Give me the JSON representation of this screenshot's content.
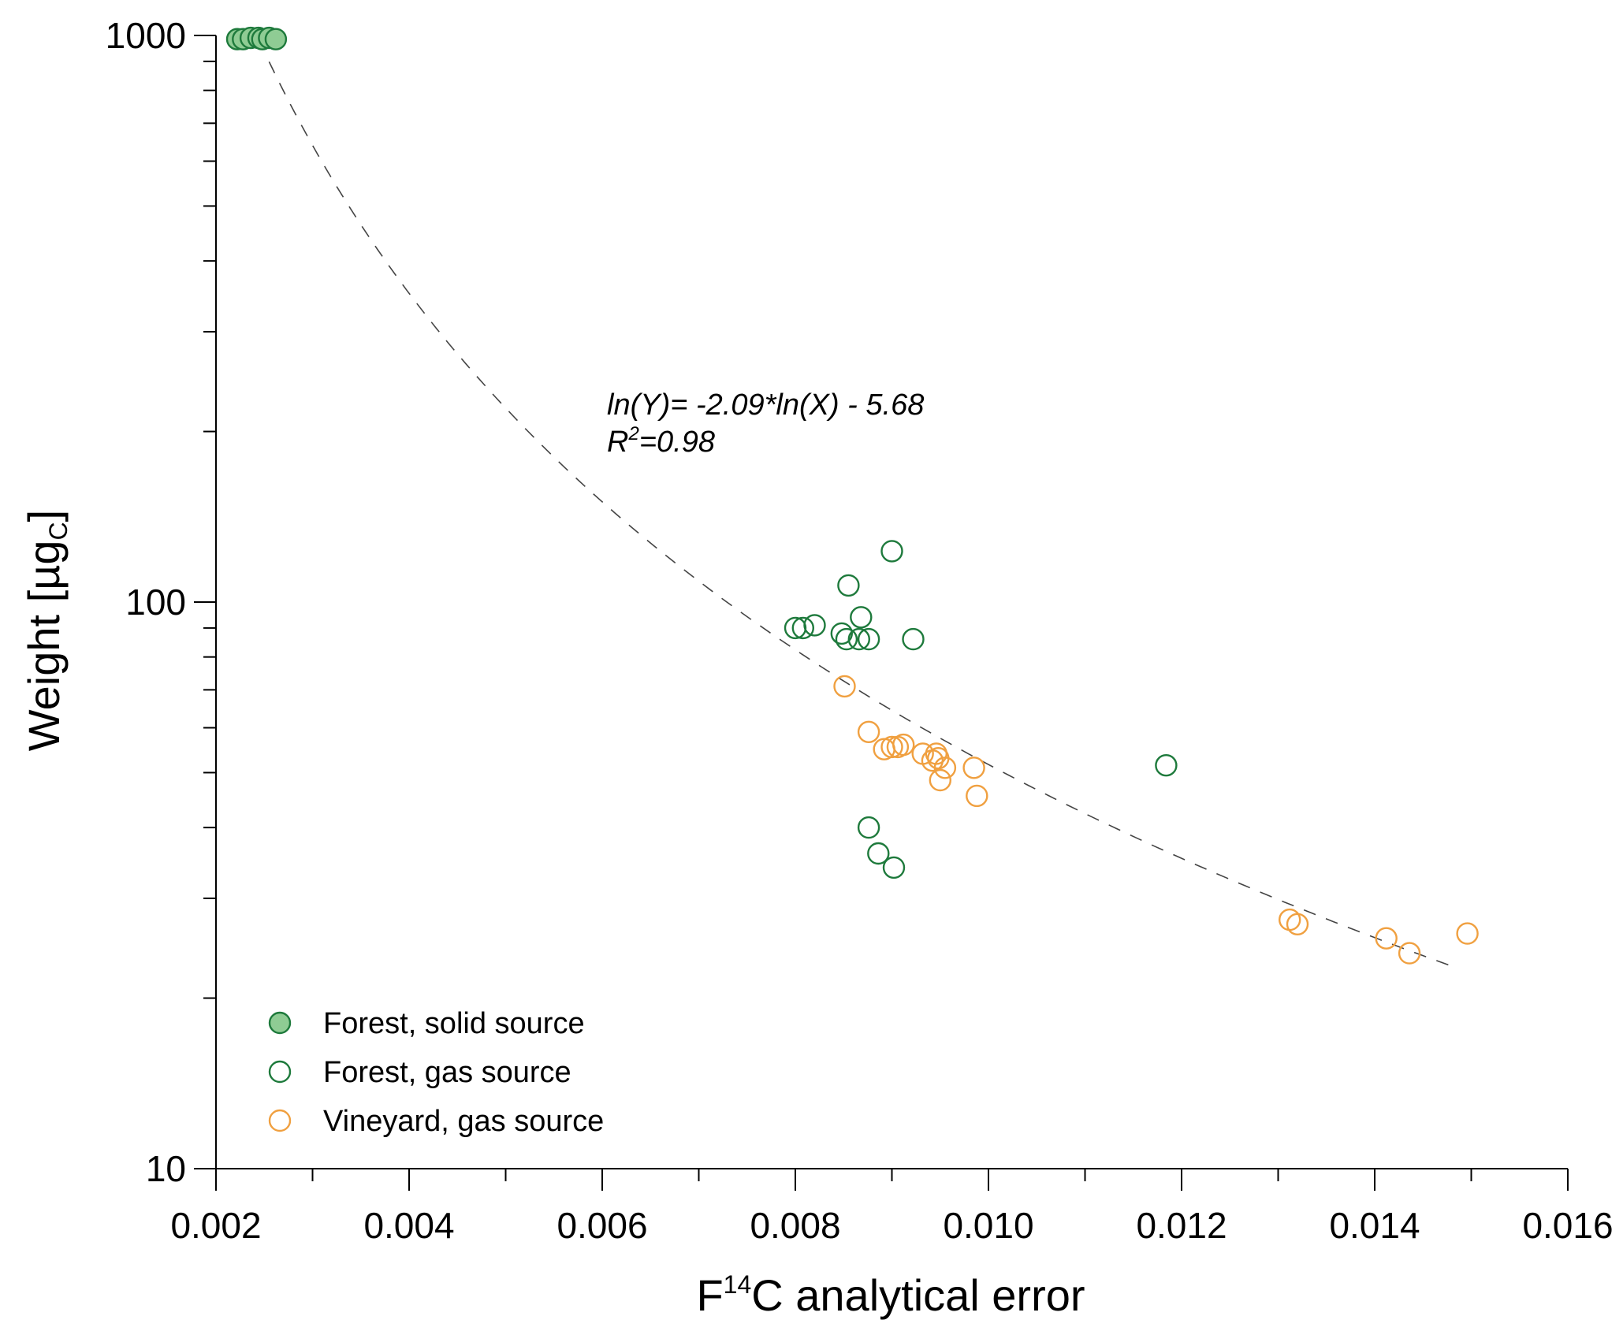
{
  "chart_data": {
    "type": "scatter",
    "xlabel_prefix": "F",
    "xlabel_sup": "14",
    "xlabel_rest": "C analytical error",
    "ylabel_main": "Weight [µg",
    "ylabel_sub": "C",
    "ylabel_close": "]",
    "x_ticks": [
      "0.002",
      "0.004",
      "0.006",
      "0.008",
      "0.010",
      "0.012",
      "0.014",
      "0.016"
    ],
    "y_ticks": [
      "10",
      "100",
      "1000"
    ],
    "xlim": [
      0.002,
      0.016
    ],
    "ylim": [
      10,
      1000
    ],
    "y_scale": "log",
    "annotation": {
      "equation": "ln(Y)= -2.09*ln(X) - 5.68",
      "r2_prefix": "R",
      "r2_sup": "2",
      "r2_value": "=0.98"
    },
    "fit": {
      "style": "dashed",
      "color": "#444444",
      "x_range": [
        0.00255,
        0.0148
      ]
    },
    "series": [
      {
        "name": "Forest, solid source",
        "marker": "filled-circle",
        "stroke": "#1e7a3c",
        "fill": "#8fcc94",
        "points": [
          [
            0.00222,
            985
          ],
          [
            0.00228,
            985
          ],
          [
            0.00236,
            990
          ],
          [
            0.00244,
            990
          ],
          [
            0.00248,
            985
          ],
          [
            0.00255,
            990
          ],
          [
            0.00262,
            985
          ]
        ]
      },
      {
        "name": "Forest, gas source",
        "marker": "open-circle",
        "stroke": "#1e7a3c",
        "fill": "none",
        "points": [
          [
            0.009,
            123
          ],
          [
            0.00855,
            107
          ],
          [
            0.00868,
            94
          ],
          [
            0.008,
            90
          ],
          [
            0.00808,
            90
          ],
          [
            0.0082,
            91
          ],
          [
            0.00848,
            88
          ],
          [
            0.00853,
            86
          ],
          [
            0.00866,
            86
          ],
          [
            0.00876,
            86
          ],
          [
            0.00922,
            86
          ],
          [
            0.01184,
            51.5
          ],
          [
            0.00876,
            40
          ],
          [
            0.00886,
            36
          ],
          [
            0.00902,
            34
          ]
        ]
      },
      {
        "name": "Vineyard, gas source",
        "marker": "open-circle",
        "stroke": "#f0a040",
        "fill": "none",
        "points": [
          [
            0.00851,
            71
          ],
          [
            0.00876,
            59
          ],
          [
            0.00892,
            55
          ],
          [
            0.009,
            55.5
          ],
          [
            0.00906,
            55.5
          ],
          [
            0.00912,
            56
          ],
          [
            0.00932,
            54
          ],
          [
            0.00942,
            52.5
          ],
          [
            0.00946,
            54
          ],
          [
            0.00948,
            53
          ],
          [
            0.00955,
            51
          ],
          [
            0.0095,
            48.5
          ],
          [
            0.00985,
            51
          ],
          [
            0.00988,
            45.5
          ],
          [
            0.01312,
            27.5
          ],
          [
            0.0132,
            27
          ],
          [
            0.01412,
            25.5
          ],
          [
            0.01436,
            24
          ],
          [
            0.01496,
            26
          ]
        ]
      }
    ],
    "legend_position": "bottom-left",
    "grid": false
  }
}
